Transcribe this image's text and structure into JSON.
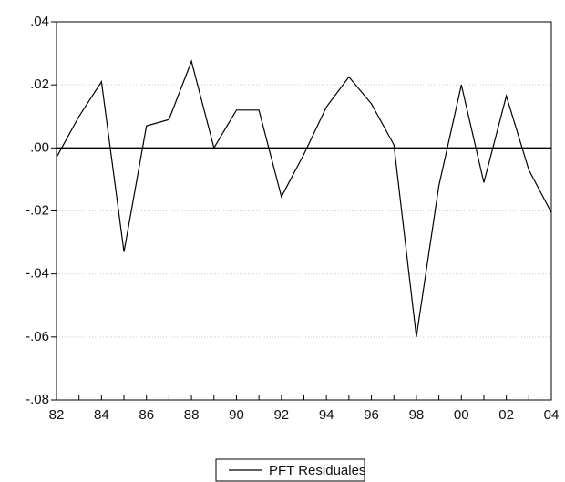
{
  "chart_data": {
    "type": "line",
    "categories": [
      "82",
      null,
      "84",
      null,
      "86",
      null,
      "88",
      null,
      "90",
      null,
      "92",
      null,
      "94",
      null,
      "96",
      null,
      "98",
      null,
      "00",
      null,
      "02",
      null,
      "04"
    ],
    "series": [
      {
        "name": "PFT Residuales",
        "color": "#000000",
        "values": [
          -0.003,
          0.01,
          0.021,
          -0.033,
          0.007,
          0.009,
          0.0275,
          0.0,
          0.012,
          0.012,
          -0.0155,
          -0.002,
          0.013,
          0.0225,
          0.014,
          0.001,
          -0.06,
          -0.012,
          0.02,
          -0.011,
          0.0165,
          -0.007,
          -0.0205
        ]
      }
    ],
    "ylim": [
      -0.08,
      0.04
    ],
    "yticks": [
      {
        "value": -0.08,
        "label": "-.08"
      },
      {
        "value": -0.06,
        "label": "-.06"
      },
      {
        "value": -0.04,
        "label": "-.04"
      },
      {
        "value": -0.02,
        "label": "-.02"
      },
      {
        "value": 0,
        "label": ".00"
      },
      {
        "value": 0.02,
        "label": ".02"
      },
      {
        "value": 0.04,
        "label": ".04"
      }
    ],
    "grid": true,
    "zero_line": true,
    "legend": "bottom"
  }
}
